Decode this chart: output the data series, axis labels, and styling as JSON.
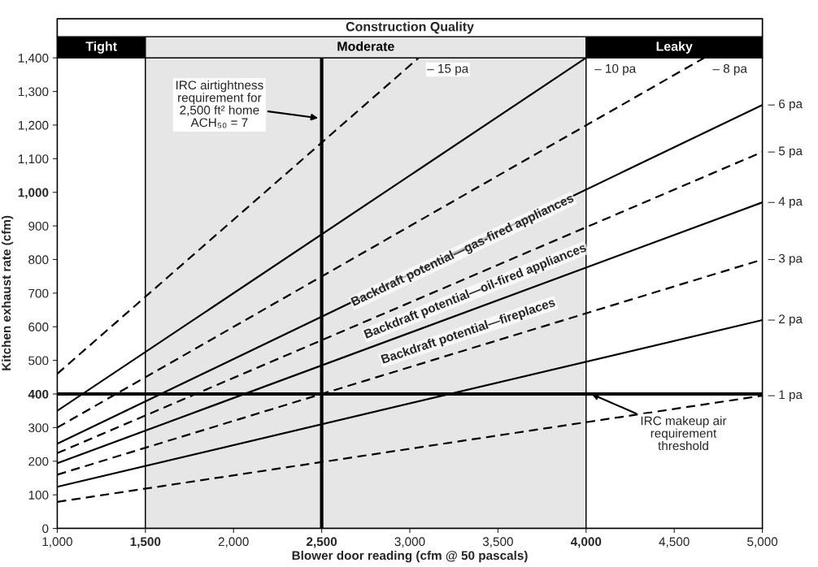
{
  "chart_data": {
    "type": "line",
    "title": "Construction Quality",
    "xlabel": "Blower door reading (cfm @ 50 pascals)",
    "ylabel": "Kitchen exhaust rate (cfm)",
    "xlim": [
      1000,
      5000
    ],
    "xticks": [
      {
        "value": 1000,
        "label": "1,000"
      },
      {
        "value": 1500,
        "label": "1,500"
      },
      {
        "value": 2000,
        "label": "2,000"
      },
      {
        "value": 2500,
        "label": "2,500"
      },
      {
        "value": 3000,
        "label": "3,000"
      },
      {
        "value": 3500,
        "label": "3,500"
      },
      {
        "value": 4000,
        "label": "4,000"
      },
      {
        "value": 4500,
        "label": "4,500"
      },
      {
        "value": 5000,
        "label": "5,000"
      }
    ],
    "ylim": [
      0,
      1400
    ],
    "yticks": [
      0,
      100,
      200,
      300,
      400,
      500,
      600,
      700,
      800,
      900,
      {
        "value": 1000,
        "label": "1,000"
      },
      {
        "value": 1100,
        "label": "1,100"
      },
      {
        "value": 1200,
        "label": "1,200"
      },
      {
        "value": 1300,
        "label": "1,300"
      },
      {
        "value": 1400,
        "label": "1,400"
      }
    ],
    "grid": false,
    "legend": false,
    "marker": "none",
    "series": [
      {
        "name": "– 15 pa",
        "color": "#000000",
        "line_style": "dashed",
        "x": [
          1000,
          3050
        ],
        "values": [
          460,
          1400
        ]
      },
      {
        "name": "– 10 pa",
        "color": "#000000",
        "line_style": "solid",
        "x": [
          1000,
          4000
        ],
        "values": [
          350,
          1400
        ]
      },
      {
        "name": "– 8 pa",
        "color": "#000000",
        "line_style": "dashed",
        "x": [
          1000,
          4670
        ],
        "values": [
          300,
          1400
        ]
      },
      {
        "name": "– 6 pa",
        "color": "#000000",
        "line_style": "solid",
        "x": [
          1000,
          5000
        ],
        "values": [
          252,
          1260
        ]
      },
      {
        "name": "– 5 pa",
        "color": "#000000",
        "line_style": "dashed",
        "x": [
          1000,
          5000
        ],
        "values": [
          224,
          1120
        ]
      },
      {
        "name": "– 4 pa",
        "color": "#000000",
        "line_style": "solid",
        "x": [
          1000,
          5000
        ],
        "values": [
          194,
          970
        ]
      },
      {
        "name": "– 3 pa",
        "color": "#000000",
        "line_style": "dashed",
        "x": [
          1000,
          5000
        ],
        "values": [
          160,
          800
        ]
      },
      {
        "name": "– 2 pa",
        "color": "#000000",
        "line_style": "solid",
        "x": [
          1000,
          5000
        ],
        "values": [
          124,
          620
        ]
      },
      {
        "name": "– 1 pa",
        "color": "#000000",
        "line_style": "dashed",
        "x": [
          1000,
          5000
        ],
        "values": [
          79,
          395
        ]
      }
    ],
    "bands": [
      {
        "axis": "x",
        "from": 1000,
        "to": 1500,
        "label": "Tight",
        "color": "#ffffff"
      },
      {
        "axis": "x",
        "from": 1500,
        "to": 4000,
        "label": "Moderate",
        "color": "#e6e6e6"
      },
      {
        "axis": "x",
        "from": 4000,
        "to": 5000,
        "label": "Leaky",
        "color": "#ffffff"
      }
    ],
    "ref_lines": [
      {
        "axis": "x",
        "value": 2500
      },
      {
        "axis": "y",
        "value": 400
      }
    ],
    "annotations": [
      "IRC airtightness\nrequirement for\n2,500 ft² home\nACH₅₀ = 7",
      {
        "text": "IRC makeup air\nrequirement\nthreshold",
        "x": 4030,
        "y": 400
      },
      "Backdraft potential—gas-fired appliances",
      "Backdraft potential—oil-fired appliances",
      "Backdraft potential—fireplaces"
    ]
  }
}
